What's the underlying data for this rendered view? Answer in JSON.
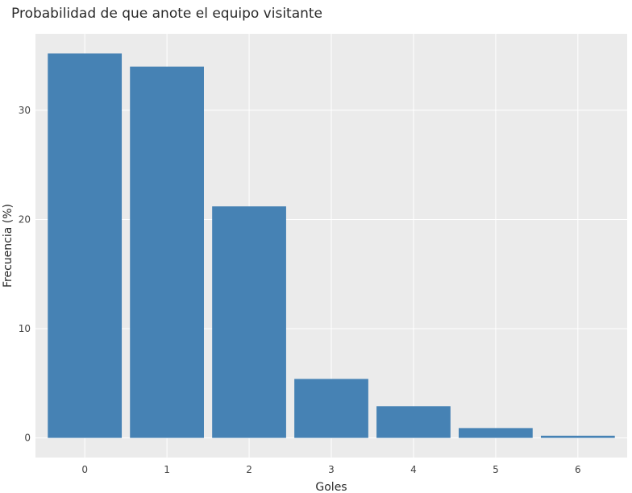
{
  "chart_data": {
    "type": "bar",
    "title": "Probabilidad de que anote el equipo visitante",
    "xlabel": "Goles",
    "ylabel": "Frecuencia (%)",
    "categories": [
      "0",
      "1",
      "2",
      "3",
      "4",
      "5",
      "6"
    ],
    "values": [
      35.2,
      34.0,
      21.2,
      5.4,
      2.9,
      0.9,
      0.2
    ],
    "ylim": [
      -1.8,
      37.0
    ],
    "yticks": [
      0,
      10,
      20,
      30
    ],
    "ytick_labels": [
      "0",
      "10",
      "20",
      "30"
    ],
    "grid": true,
    "legend": "none",
    "colors": {
      "bar": "#4682b4",
      "panel": "#ebebeb",
      "grid": "#ffffff"
    }
  }
}
